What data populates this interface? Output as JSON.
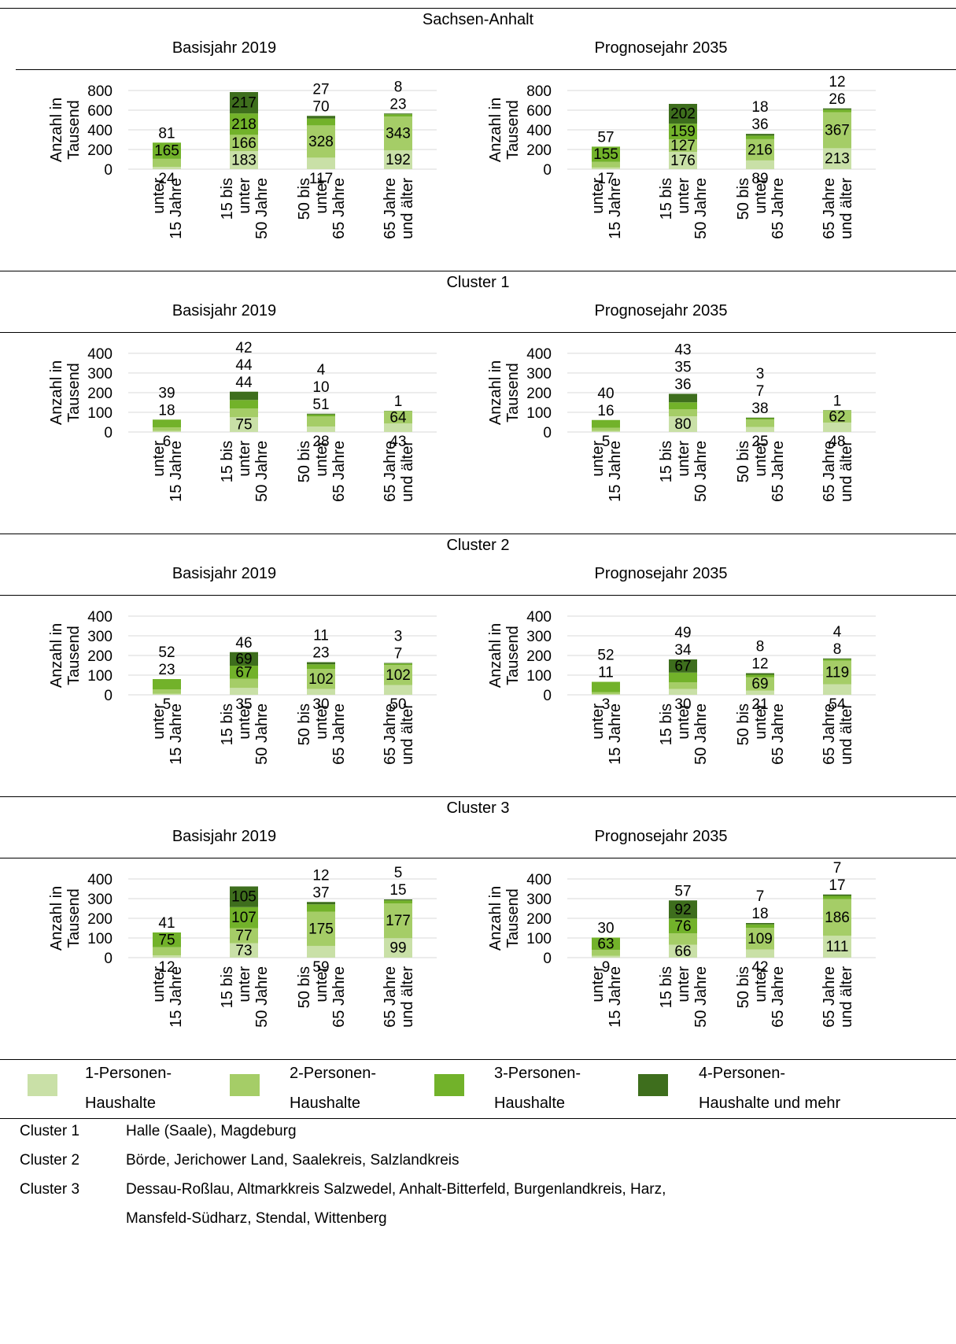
{
  "colors": {
    "s1": "#c9e0a7",
    "s2": "#a5cd67",
    "s3": "#72b22a",
    "s4": "#3e6e1d",
    "grid": "#d9d9d9"
  },
  "sections": [
    {
      "title": "Sachsen-Anhalt"
    },
    {
      "title": "Cluster 1"
    },
    {
      "title": "Cluster 2"
    },
    {
      "title": "Cluster 3"
    }
  ],
  "panel_titles": [
    "Basisjahr 2019",
    "Prognosejahr 2035"
  ],
  "y_label": [
    "Anzahl in",
    "Tausend"
  ],
  "category_labels": [
    [
      "unter",
      "15 Jahre"
    ],
    [
      "15 bis",
      "unter",
      "50 Jahre"
    ],
    [
      "50 bis",
      "unter",
      "65 Jahre"
    ],
    [
      "65 Jahre",
      "und älter"
    ]
  ],
  "chart_data": [
    {
      "type": "bar",
      "stacked": true,
      "section": "Sachsen-Anhalt",
      "title": "Basisjahr 2019",
      "ylabel": "Anzahl in Tausend",
      "categories": [
        "unter 15 Jahre",
        "15 bis unter 50 Jahre",
        "50 bis unter 65 Jahre",
        "65 Jahre und älter"
      ],
      "ylim": [
        0,
        800
      ],
      "yticks": [
        0,
        200,
        400,
        600,
        800
      ],
      "series": [
        {
          "name": "1-Personen-Haushalte",
          "values": [
            24,
            183,
            117,
            192
          ]
        },
        {
          "name": "2-Personen-Haushalte",
          "values": [
            81,
            166,
            328,
            343
          ]
        },
        {
          "name": "3-Personen-Haushalte",
          "values": [
            165,
            218,
            70,
            23
          ]
        },
        {
          "name": "4-Personen-Haushalte und mehr",
          "values": [
            0,
            217,
            27,
            8
          ]
        }
      ]
    },
    {
      "type": "bar",
      "stacked": true,
      "section": "Sachsen-Anhalt",
      "title": "Prognosejahr 2035",
      "ylabel": "Anzahl in Tausend",
      "categories": [
        "unter 15 Jahre",
        "15 bis unter 50 Jahre",
        "50 bis unter 65 Jahre",
        "65 Jahre und älter"
      ],
      "ylim": [
        0,
        800
      ],
      "yticks": [
        0,
        200,
        400,
        600,
        800
      ],
      "series": [
        {
          "name": "1-Personen-Haushalte",
          "values": [
            17,
            176,
            89,
            213
          ]
        },
        {
          "name": "2-Personen-Haushalte",
          "values": [
            57,
            127,
            216,
            367
          ]
        },
        {
          "name": "3-Personen-Haushalte",
          "values": [
            155,
            159,
            36,
            26
          ]
        },
        {
          "name": "4-Personen-Haushalte und mehr",
          "values": [
            0,
            202,
            18,
            12
          ]
        }
      ]
    },
    {
      "type": "bar",
      "stacked": true,
      "section": "Cluster 1",
      "title": "Basisjahr 2019",
      "ylabel": "Anzahl in Tausend",
      "categories": [
        "unter 15 Jahre",
        "15 bis unter 50 Jahre",
        "50 bis unter 65 Jahre",
        "65 Jahre und älter"
      ],
      "ylim": [
        0,
        400
      ],
      "yticks": [
        0,
        100,
        200,
        300,
        400
      ],
      "series": [
        {
          "name": "1-Personen-Haushalte",
          "values": [
            6,
            75,
            28,
            43
          ]
        },
        {
          "name": "2-Personen-Haushalte",
          "values": [
            18,
            44,
            51,
            64
          ]
        },
        {
          "name": "3-Personen-Haushalte",
          "values": [
            39,
            44,
            10,
            0
          ]
        },
        {
          "name": "4-Personen-Haushalte und mehr",
          "values": [
            0,
            42,
            4,
            1
          ]
        }
      ]
    },
    {
      "type": "bar",
      "stacked": true,
      "section": "Cluster 1",
      "title": "Prognosejahr 2035",
      "ylabel": "Anzahl in Tausend",
      "categories": [
        "unter 15 Jahre",
        "15 bis unter 50 Jahre",
        "50 bis unter 65 Jahre",
        "65 Jahre und älter"
      ],
      "ylim": [
        0,
        400
      ],
      "yticks": [
        0,
        100,
        200,
        300,
        400
      ],
      "series": [
        {
          "name": "1-Personen-Haushalte",
          "values": [
            5,
            80,
            25,
            48
          ]
        },
        {
          "name": "2-Personen-Haushalte",
          "values": [
            16,
            36,
            38,
            62
          ]
        },
        {
          "name": "3-Personen-Haushalte",
          "values": [
            40,
            35,
            7,
            0
          ]
        },
        {
          "name": "4-Personen-Haushalte und mehr",
          "values": [
            0,
            43,
            3,
            1
          ]
        }
      ]
    },
    {
      "type": "bar",
      "stacked": true,
      "section": "Cluster 2",
      "title": "Basisjahr 2019",
      "ylabel": "Anzahl in Tausend",
      "categories": [
        "unter 15 Jahre",
        "15 bis unter 50 Jahre",
        "50 bis unter 65 Jahre",
        "65 Jahre und älter"
      ],
      "ylim": [
        0,
        400
      ],
      "yticks": [
        0,
        100,
        200,
        300,
        400
      ],
      "series": [
        {
          "name": "1-Personen-Haushalte",
          "values": [
            5,
            35,
            30,
            50
          ]
        },
        {
          "name": "2-Personen-Haushalte",
          "values": [
            23,
            46,
            102,
            102
          ]
        },
        {
          "name": "3-Personen-Haushalte",
          "values": [
            52,
            67,
            23,
            7
          ]
        },
        {
          "name": "4-Personen-Haushalte und mehr",
          "values": [
            0,
            69,
            11,
            3
          ]
        }
      ]
    },
    {
      "type": "bar",
      "stacked": true,
      "section": "Cluster 2",
      "title": "Prognosejahr 2035",
      "ylabel": "Anzahl in Tausend",
      "categories": [
        "unter 15 Jahre",
        "15 bis unter 50 Jahre",
        "50 bis unter 65 Jahre",
        "65 Jahre und älter"
      ],
      "ylim": [
        0,
        400
      ],
      "yticks": [
        0,
        100,
        200,
        300,
        400
      ],
      "series": [
        {
          "name": "1-Personen-Haushalte",
          "values": [
            3,
            30,
            21,
            54
          ]
        },
        {
          "name": "2-Personen-Haushalte",
          "values": [
            11,
            34,
            69,
            119
          ]
        },
        {
          "name": "3-Personen-Haushalte",
          "values": [
            52,
            49,
            12,
            8
          ]
        },
        {
          "name": "4-Personen-Haushalte und mehr",
          "values": [
            0,
            67,
            8,
            4
          ]
        }
      ]
    },
    {
      "type": "bar",
      "stacked": true,
      "section": "Cluster 3",
      "title": "Basisjahr 2019",
      "ylabel": "Anzahl in Tausend",
      "categories": [
        "unter 15 Jahre",
        "15 bis unter 50 Jahre",
        "50 bis unter 65 Jahre",
        "65 Jahre und älter"
      ],
      "ylim": [
        0,
        400
      ],
      "yticks": [
        0,
        100,
        200,
        300,
        400
      ],
      "series": [
        {
          "name": "1-Personen-Haushalte",
          "values": [
            12,
            73,
            59,
            99
          ]
        },
        {
          "name": "2-Personen-Haushalte",
          "values": [
            41,
            77,
            175,
            177
          ]
        },
        {
          "name": "3-Personen-Haushalte",
          "values": [
            75,
            107,
            37,
            15
          ]
        },
        {
          "name": "4-Personen-Haushalte und mehr",
          "values": [
            0,
            105,
            12,
            5
          ]
        }
      ]
    },
    {
      "type": "bar",
      "stacked": true,
      "section": "Cluster 3",
      "title": "Prognosejahr 2035",
      "ylabel": "Anzahl in Tausend",
      "categories": [
        "unter 15 Jahre",
        "15 bis unter 50 Jahre",
        "50 bis unter 65 Jahre",
        "65 Jahre und älter"
      ],
      "ylim": [
        0,
        400
      ],
      "yticks": [
        0,
        100,
        200,
        300,
        400
      ],
      "series": [
        {
          "name": "1-Personen-Haushalte",
          "values": [
            9,
            66,
            42,
            111
          ]
        },
        {
          "name": "2-Personen-Haushalte",
          "values": [
            30,
            57,
            109,
            186
          ]
        },
        {
          "name": "3-Personen-Haushalte",
          "values": [
            63,
            76,
            18,
            17
          ]
        },
        {
          "name": "4-Personen-Haushalte und mehr",
          "values": [
            0,
            92,
            7,
            7
          ]
        }
      ]
    }
  ],
  "legend": [
    {
      "line1": "1-Personen-",
      "line2": "Haushalte",
      "color_key": "s1"
    },
    {
      "line1": "2-Personen-",
      "line2": "Haushalte",
      "color_key": "s2"
    },
    {
      "line1": "3-Personen-",
      "line2": "Haushalte",
      "color_key": "s3"
    },
    {
      "line1": "4-Personen-",
      "line2": "Haushalte und mehr",
      "color_key": "s4"
    }
  ],
  "notes": [
    {
      "key": "Cluster 1",
      "lines": [
        "Halle (Saale), Magdeburg"
      ]
    },
    {
      "key": "Cluster 2",
      "lines": [
        "Börde, Jerichower Land, Saalekreis, Salzlandkreis"
      ]
    },
    {
      "key": "Cluster 3",
      "lines": [
        "Dessau-Roßlau, Altmarkkreis Salzwedel, Anhalt-Bitterfeld, Burgenlandkreis, Harz,",
        "Mansfeld-Südharz, Stendal, Wittenberg"
      ]
    }
  ]
}
